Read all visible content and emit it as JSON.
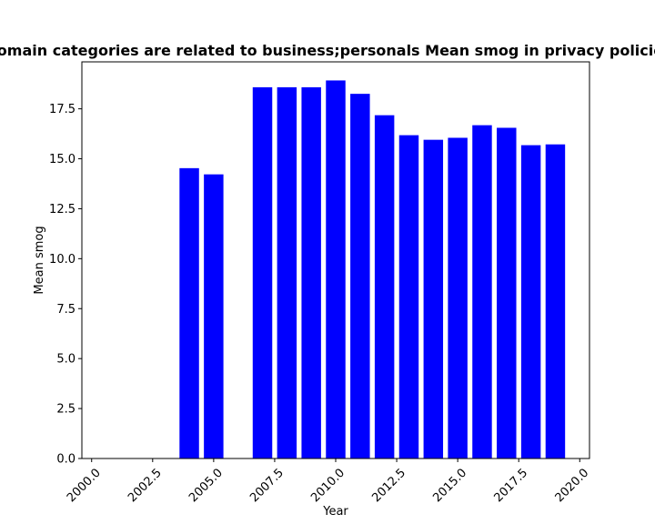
{
  "chart_data": {
    "type": "bar",
    "title": "Which domain categories are related to business;personals Mean smog in privacy policies by year",
    "xlabel": "Year",
    "ylabel": "Mean smog",
    "x": [
      2004,
      2005,
      2007,
      2008,
      2009,
      2010,
      2011,
      2012,
      2013,
      2014,
      2015,
      2016,
      2017,
      2018,
      2019
    ],
    "values": [
      14.53,
      14.22,
      18.58,
      18.58,
      18.58,
      18.92,
      18.25,
      17.18,
      16.18,
      15.95,
      16.05,
      16.68,
      16.55,
      15.68,
      15.72
    ],
    "xlim": [
      1999.6,
      2020.4
    ],
    "ylim": [
      0,
      19.85
    ],
    "x_ticks": [
      "2000.0",
      "2002.5",
      "2005.0",
      "2007.5",
      "2010.0",
      "2012.5",
      "2015.0",
      "2017.5",
      "2020.0"
    ],
    "y_ticks": [
      "0.0",
      "2.5",
      "5.0",
      "7.5",
      "10.0",
      "12.5",
      "15.0",
      "17.5"
    ],
    "bar_color": "#0000ff",
    "grid": false,
    "legend": "none"
  }
}
